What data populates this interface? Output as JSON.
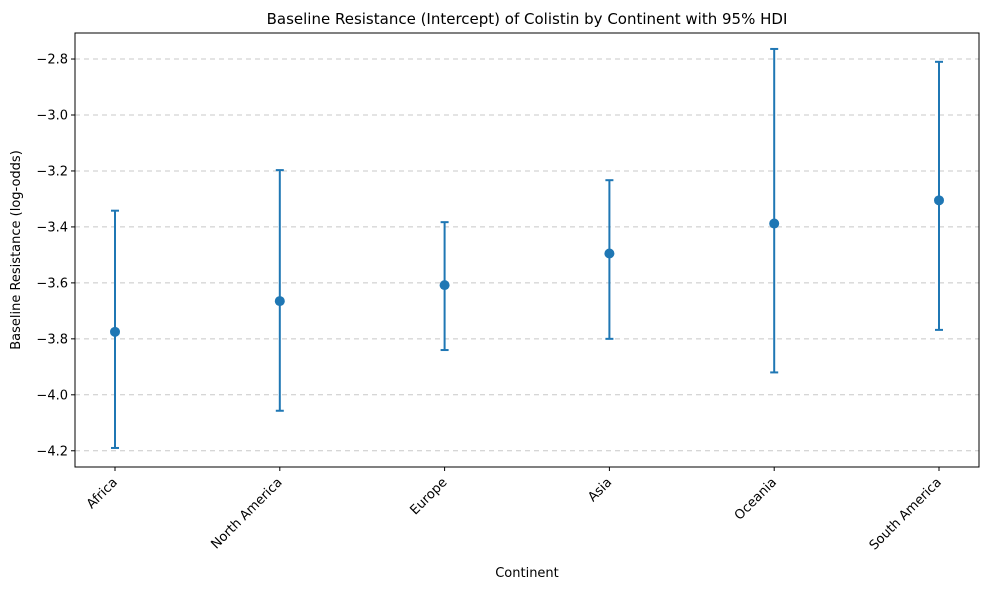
{
  "chart_data": {
    "type": "errorbar",
    "title": "Baseline Resistance (Intercept) of Colistin by Continent with 95% HDI",
    "xlabel": "Continent",
    "ylabel": "Baseline Resistance (log-odds)",
    "categories": [
      "Africa",
      "North America",
      "Europe",
      "Asia",
      "Oceania",
      "South America"
    ],
    "values": [
      -3.775,
      -3.665,
      -3.608,
      -3.495,
      -3.388,
      -3.305
    ],
    "hdi_lower": [
      -4.19,
      -4.057,
      -3.84,
      -3.8,
      -3.92,
      -3.768
    ],
    "hdi_upper": [
      -3.342,
      -3.197,
      -3.383,
      -3.233,
      -2.764,
      -2.81
    ],
    "ylim": [
      -4.258,
      -2.707
    ],
    "yticks": [
      -4.2,
      -4.0,
      -3.8,
      -3.6,
      -3.4,
      -3.2,
      -3.0,
      -2.8
    ],
    "ytick_labels": [
      "−4.2",
      "−4.0",
      "−3.8",
      "−3.6",
      "−3.4",
      "−3.2",
      "−3.0",
      "−2.8"
    ],
    "grid": "y-dashed",
    "series_color": "#1f77b4",
    "grid_color": "#c8c8c8"
  }
}
